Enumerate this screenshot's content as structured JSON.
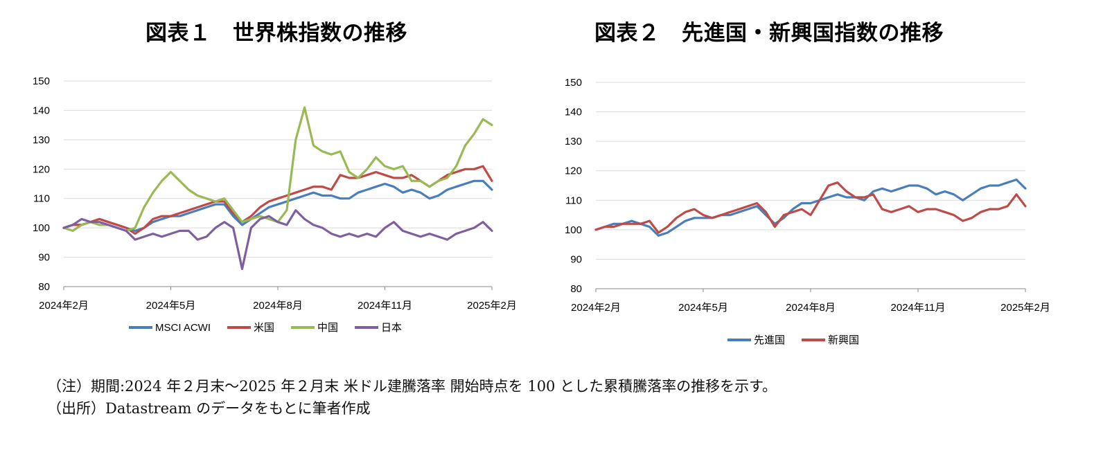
{
  "notes": {
    "line1": "（注）期間:2024 年２月末～2025 年２月末 米ドル建騰落率 開始時点を 100 とした累積騰落率の推移を示す。",
    "line2": "（出所）Datastream のデータをもとに筆者作成"
  },
  "chart_data": [
    {
      "type": "line",
      "title": "図表１　世界株指数の推移",
      "xlabel": "",
      "ylabel": "",
      "x_tick_labels": [
        "2024年2月",
        "2024年5月",
        "2024年8月",
        "2024年11月",
        "2025年2月"
      ],
      "y_ticks": [
        80,
        90,
        100,
        110,
        120,
        130,
        140,
        150
      ],
      "ylim": [
        80,
        150
      ],
      "grid": "horizontal",
      "legend_position": "bottom",
      "x": [
        0,
        0.25,
        0.5,
        0.75,
        1,
        1.25,
        1.5,
        1.75,
        2,
        2.25,
        2.5,
        2.75,
        3,
        3.25,
        3.5,
        3.75,
        4,
        4.25,
        4.5,
        4.75,
        5,
        5.25,
        5.5,
        5.75,
        6,
        6.25,
        6.5,
        6.75,
        7,
        7.25,
        7.5,
        7.75,
        8,
        8.25,
        8.5,
        8.75,
        9,
        9.25,
        9.5,
        9.75,
        10,
        10.25,
        10.5,
        10.75,
        11,
        11.25,
        11.5,
        11.75,
        12
      ],
      "series": [
        {
          "name": "MSCI ACWI",
          "color": "#4a7ebb",
          "values": [
            100,
            101,
            101,
            102,
            103,
            102,
            101,
            100,
            99,
            100,
            102,
            103,
            104,
            104,
            105,
            106,
            107,
            108,
            108,
            104,
            101,
            103,
            105,
            107,
            108,
            109,
            110,
            111,
            112,
            111,
            111,
            110,
            110,
            112,
            113,
            114,
            115,
            114,
            112,
            113,
            112,
            110,
            111,
            113,
            114,
            115,
            116,
            116,
            113
          ]
        },
        {
          "name": "米国",
          "color": "#be4b48",
          "values": [
            100,
            101,
            101,
            102,
            103,
            102,
            101,
            100,
            98,
            100,
            103,
            104,
            104,
            105,
            106,
            107,
            108,
            109,
            109,
            105,
            102,
            104,
            107,
            109,
            110,
            111,
            112,
            113,
            114,
            114,
            113,
            118,
            117,
            117,
            118,
            119,
            118,
            117,
            117,
            118,
            116,
            114,
            116,
            118,
            119,
            120,
            120,
            121,
            116
          ]
        },
        {
          "name": "中国",
          "color": "#98b954",
          "values": [
            100,
            99,
            101,
            102,
            101,
            101,
            100,
            99,
            100,
            107,
            112,
            116,
            119,
            116,
            113,
            111,
            110,
            109,
            110,
            106,
            102,
            103,
            104,
            103,
            102,
            106,
            130,
            141,
            128,
            126,
            125,
            126,
            119,
            117,
            120,
            124,
            121,
            120,
            121,
            116,
            116,
            114,
            116,
            117,
            121,
            128,
            132,
            137,
            135
          ]
        },
        {
          "name": "日本",
          "color": "#7d5fa0",
          "values": [
            100,
            101,
            103,
            102,
            102,
            101,
            100,
            99,
            96,
            97,
            98,
            97,
            98,
            99,
            99,
            96,
            97,
            100,
            102,
            100,
            86,
            100,
            103,
            104,
            102,
            101,
            106,
            103,
            101,
            100,
            98,
            97,
            98,
            97,
            98,
            97,
            100,
            102,
            99,
            98,
            97,
            98,
            97,
            96,
            98,
            99,
            100,
            102,
            99
          ]
        }
      ]
    },
    {
      "type": "line",
      "title": "図表２　先進国・新興国指数の推移",
      "xlabel": "",
      "ylabel": "",
      "x_tick_labels": [
        "2024年2月",
        "2024年5月",
        "2024年8月",
        "2024年11月",
        "2025年2月"
      ],
      "y_ticks": [
        80,
        90,
        100,
        110,
        120,
        130,
        140,
        150
      ],
      "ylim": [
        80,
        150
      ],
      "grid": "horizontal",
      "legend_position": "bottom",
      "x": [
        0,
        0.25,
        0.5,
        0.75,
        1,
        1.25,
        1.5,
        1.75,
        2,
        2.25,
        2.5,
        2.75,
        3,
        3.25,
        3.5,
        3.75,
        4,
        4.25,
        4.5,
        4.75,
        5,
        5.25,
        5.5,
        5.75,
        6,
        6.25,
        6.5,
        6.75,
        7,
        7.25,
        7.5,
        7.75,
        8,
        8.25,
        8.5,
        8.75,
        9,
        9.25,
        9.5,
        9.75,
        10,
        10.25,
        10.5,
        10.75,
        11,
        11.25,
        11.5,
        11.75,
        12
      ],
      "series": [
        {
          "name": "先進国",
          "color": "#4a7ebb",
          "values": [
            100,
            101,
            102,
            102,
            103,
            102,
            101,
            98,
            99,
            101,
            103,
            104,
            104,
            104,
            105,
            105,
            106,
            107,
            108,
            105,
            102,
            104,
            107,
            109,
            109,
            110,
            111,
            112,
            111,
            111,
            110,
            113,
            114,
            113,
            114,
            115,
            115,
            114,
            112,
            113,
            112,
            110,
            112,
            114,
            115,
            115,
            116,
            117,
            114
          ]
        },
        {
          "name": "新興国",
          "color": "#be4b48",
          "values": [
            100,
            101,
            101,
            102,
            102,
            102,
            103,
            99,
            101,
            104,
            106,
            107,
            105,
            104,
            105,
            106,
            107,
            108,
            109,
            106,
            101,
            105,
            106,
            107,
            105,
            110,
            115,
            116,
            113,
            111,
            111,
            112,
            107,
            106,
            107,
            108,
            106,
            107,
            107,
            106,
            105,
            103,
            104,
            106,
            107,
            107,
            108,
            112,
            108
          ]
        }
      ]
    }
  ]
}
